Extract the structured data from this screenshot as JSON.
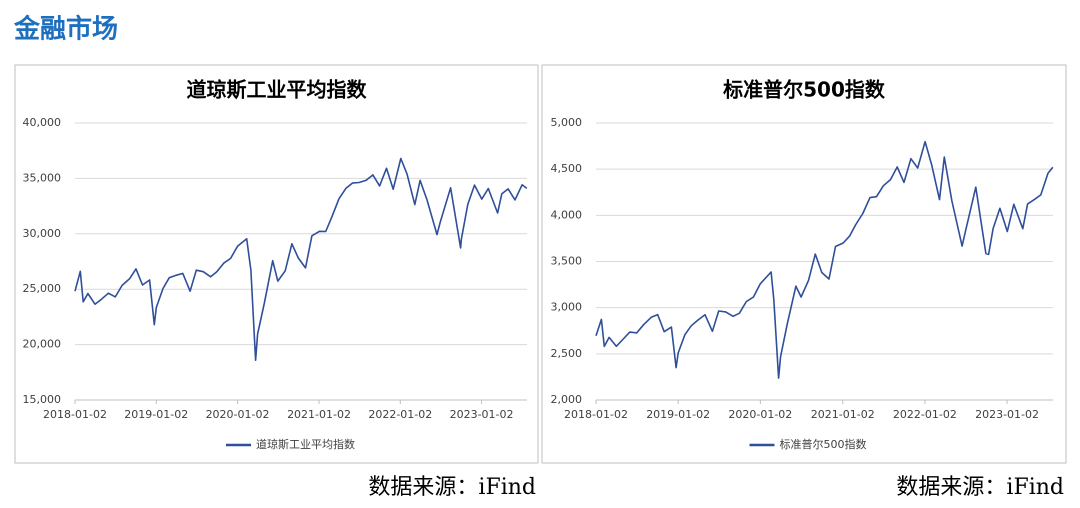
{
  "header": "金融市场",
  "chart_data": [
    {
      "type": "line",
      "title": "道琼斯工业平均指数",
      "x": [
        "2018-01-02",
        "2018-01-26",
        "2018-02-08",
        "2018-03-01",
        "2018-04-02",
        "2018-05-01",
        "2018-06-01",
        "2018-07-02",
        "2018-08-01",
        "2018-09-04",
        "2018-10-03",
        "2018-11-01",
        "2018-12-03",
        "2018-12-24",
        "2019-01-02",
        "2019-02-01",
        "2019-03-01",
        "2019-04-01",
        "2019-05-01",
        "2019-06-03",
        "2019-07-01",
        "2019-08-01",
        "2019-09-03",
        "2019-10-01",
        "2019-11-01",
        "2019-12-02",
        "2020-01-02",
        "2020-02-12",
        "2020-03-02",
        "2020-03-23",
        "2020-04-01",
        "2020-05-01",
        "2020-06-08",
        "2020-07-01",
        "2020-08-03",
        "2020-09-02",
        "2020-10-01",
        "2020-11-02",
        "2020-12-01",
        "2021-01-04",
        "2021-02-01",
        "2021-03-01",
        "2021-04-01",
        "2021-05-03",
        "2021-06-01",
        "2021-07-01",
        "2021-08-02",
        "2021-09-01",
        "2021-10-01",
        "2021-11-01",
        "2021-12-01",
        "2022-01-04",
        "2022-02-01",
        "2022-03-08",
        "2022-04-01",
        "2022-05-02",
        "2022-06-16",
        "2022-07-01",
        "2022-08-16",
        "2022-09-30",
        "2022-10-03",
        "2022-11-01",
        "2022-12-01",
        "2023-01-03",
        "2023-02-01",
        "2023-03-15",
        "2023-04-03",
        "2023-05-01",
        "2023-06-01",
        "2023-07-03",
        "2023-07-24"
      ],
      "series": [
        {
          "name": "道琼斯工业平均指数",
          "color": "#2f4f9a",
          "values": [
            24824,
            26617,
            23860,
            24608,
            23644,
            24099,
            24635,
            24307,
            25333,
            25952,
            26828,
            25380,
            25826,
            21792,
            23346,
            25063,
            26026,
            26258,
            26430,
            24819,
            26717,
            26583,
            26118,
            26573,
            27347,
            27783,
            28868,
            29551,
            26703,
            18592,
            20944,
            23724,
            27572,
            25734,
            26664,
            29100,
            27817,
            26925,
            29823,
            30224,
            30212,
            31536,
            33154,
            34113,
            34575,
            34634,
            34838,
            35312,
            34326,
            35913,
            34022,
            36799,
            35405,
            32633,
            34818,
            33062,
            29927,
            31097,
            34152,
            28725,
            29490,
            32653,
            34395,
            33136,
            34092,
            31874,
            33601,
            34051,
            33061,
            34418,
            34100
          ]
        }
      ],
      "xlim": [
        "2018-01-02",
        "2023-07-25"
      ],
      "xticks": [
        "2018-01-02",
        "2019-01-02",
        "2020-01-02",
        "2021-01-02",
        "2022-01-02",
        "2023-01-02"
      ],
      "ylim": [
        15000,
        40000
      ],
      "yticks": [
        {
          "value": 15000,
          "label": "15,000"
        },
        {
          "value": 20000,
          "label": "20,000"
        },
        {
          "value": 25000,
          "label": "25,000"
        },
        {
          "value": 30000,
          "label": "30,000"
        },
        {
          "value": 35000,
          "label": "35,000"
        },
        {
          "value": 40000,
          "label": "40,000"
        }
      ],
      "grid": true,
      "legend": "bottom",
      "source": "数据来源：iFind"
    },
    {
      "type": "line",
      "title": "标准普尔500指数",
      "x": [
        "2018-01-02",
        "2018-01-26",
        "2018-02-08",
        "2018-03-01",
        "2018-04-02",
        "2018-05-01",
        "2018-06-01",
        "2018-07-02",
        "2018-08-01",
        "2018-09-04",
        "2018-10-03",
        "2018-11-01",
        "2018-12-03",
        "2018-12-24",
        "2019-01-02",
        "2019-02-01",
        "2019-03-01",
        "2019-04-01",
        "2019-05-01",
        "2019-06-03",
        "2019-07-01",
        "2019-08-01",
        "2019-09-03",
        "2019-10-01",
        "2019-11-01",
        "2019-12-02",
        "2020-01-02",
        "2020-02-19",
        "2020-03-02",
        "2020-03-23",
        "2020-04-01",
        "2020-05-01",
        "2020-06-08",
        "2020-07-01",
        "2020-08-03",
        "2020-09-02",
        "2020-10-01",
        "2020-11-02",
        "2020-12-01",
        "2021-01-04",
        "2021-02-01",
        "2021-03-01",
        "2021-04-01",
        "2021-05-03",
        "2021-06-01",
        "2021-07-01",
        "2021-08-02",
        "2021-09-01",
        "2021-10-01",
        "2021-11-01",
        "2021-12-01",
        "2022-01-03",
        "2022-02-01",
        "2022-03-08",
        "2022-03-29",
        "2022-05-02",
        "2022-06-16",
        "2022-07-01",
        "2022-08-16",
        "2022-09-30",
        "2022-10-12",
        "2022-11-01",
        "2022-12-01",
        "2023-01-03",
        "2023-02-01",
        "2023-03-13",
        "2023-04-03",
        "2023-05-01",
        "2023-06-01",
        "2023-07-03",
        "2023-07-24"
      ],
      "series": [
        {
          "name": "标准普尔500指数",
          "color": "#2f4f9a",
          "values": [
            2695,
            2873,
            2581,
            2678,
            2582,
            2655,
            2735,
            2727,
            2814,
            2896,
            2925,
            2740,
            2790,
            2351,
            2510,
            2707,
            2804,
            2867,
            2924,
            2744,
            2964,
            2954,
            2906,
            2940,
            3067,
            3114,
            3258,
            3386,
            3090,
            2237,
            2471,
            2831,
            3232,
            3115,
            3295,
            3580,
            3381,
            3310,
            3662,
            3700,
            3774,
            3901,
            4020,
            4192,
            4202,
            4320,
            4387,
            4524,
            4357,
            4613,
            4513,
            4797,
            4546,
            4170,
            4631,
            4155,
            3667,
            3825,
            4305,
            3586,
            3577,
            3856,
            4076,
            3825,
            4119,
            3855,
            4124,
            4168,
            4221,
            4455,
            4520
          ]
        }
      ],
      "xlim": [
        "2018-01-02",
        "2023-07-25"
      ],
      "xticks": [
        "2018-01-02",
        "2019-01-02",
        "2020-01-02",
        "2021-01-02",
        "2022-01-02",
        "2023-01-02"
      ],
      "ylim": [
        2000,
        5000
      ],
      "yticks": [
        {
          "value": 2000,
          "label": "2,000"
        },
        {
          "value": 2500,
          "label": "2,500"
        },
        {
          "value": 3000,
          "label": "3,000"
        },
        {
          "value": 3500,
          "label": "3,500"
        },
        {
          "value": 4000,
          "label": "4,000"
        },
        {
          "value": 4500,
          "label": "4,500"
        },
        {
          "value": 5000,
          "label": "5,000"
        }
      ],
      "grid": true,
      "legend": "bottom",
      "source": "数据来源：iFind"
    }
  ]
}
